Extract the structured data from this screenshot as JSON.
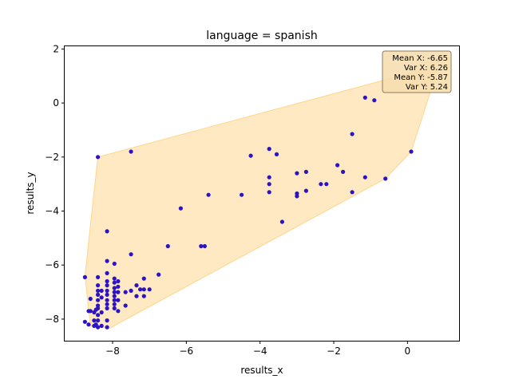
{
  "chart_data": {
    "type": "scatter",
    "title": "language = spanish",
    "xlabel": "results_x",
    "ylabel": "results_y",
    "xlim": [
      -9.3,
      1.4
    ],
    "ylim": [
      -8.8,
      2.1
    ],
    "xticks": [
      -8,
      -6,
      -4,
      -2,
      0
    ],
    "yticks": [
      -8,
      -6,
      -4,
      -2,
      0,
      2
    ],
    "tick_labels_x": [
      "−8",
      "−6",
      "−4",
      "−2",
      "0"
    ],
    "tick_labels_y": [
      "−8",
      "−6",
      "−4",
      "−2",
      "0",
      "2"
    ],
    "grid": false,
    "point_color": "#2b14c4",
    "hull_color": "#ffe5b8",
    "hull_edge_color": "#ffd58a",
    "hull": [
      [
        -8.4,
        -2.0
      ],
      [
        0.6,
        1.3
      ],
      [
        0.9,
        1.4
      ],
      [
        0.5,
        1.5
      ],
      [
        0.9,
        1.6
      ],
      [
        0.1,
        -1.8
      ],
      [
        -0.6,
        -2.8
      ],
      [
        -8.1,
        -8.35
      ],
      [
        -8.6,
        -8.25
      ],
      [
        -8.75,
        -6.4
      ]
    ],
    "points": [
      [
        -8.75,
        -6.45
      ],
      [
        -8.75,
        -8.1
      ],
      [
        -8.65,
        -7.7
      ],
      [
        -8.65,
        -8.2
      ],
      [
        -8.6,
        -7.25
      ],
      [
        -8.6,
        -7.7
      ],
      [
        -8.5,
        -7.75
      ],
      [
        -8.5,
        -8.05
      ],
      [
        -8.5,
        -8.25
      ],
      [
        -8.45,
        -7.65
      ],
      [
        -8.45,
        -8.2
      ],
      [
        -8.4,
        -2.0
      ],
      [
        -8.4,
        -6.45
      ],
      [
        -8.4,
        -6.75
      ],
      [
        -8.4,
        -6.95
      ],
      [
        -8.4,
        -7.1
      ],
      [
        -8.4,
        -7.3
      ],
      [
        -8.4,
        -7.5
      ],
      [
        -8.4,
        -7.6
      ],
      [
        -8.4,
        -7.85
      ],
      [
        -8.4,
        -8.05
      ],
      [
        -8.4,
        -8.3
      ],
      [
        -8.3,
        -6.95
      ],
      [
        -8.3,
        -7.2
      ],
      [
        -8.3,
        -7.75
      ],
      [
        -8.3,
        -8.25
      ],
      [
        -8.15,
        -4.75
      ],
      [
        -8.15,
        -5.85
      ],
      [
        -8.15,
        -6.3
      ],
      [
        -8.15,
        -6.6
      ],
      [
        -8.15,
        -6.75
      ],
      [
        -8.15,
        -6.95
      ],
      [
        -8.15,
        -7.1
      ],
      [
        -8.15,
        -7.3
      ],
      [
        -8.15,
        -7.45
      ],
      [
        -8.15,
        -7.6
      ],
      [
        -8.15,
        -8.05
      ],
      [
        -8.15,
        -8.3
      ],
      [
        -7.95,
        -5.95
      ],
      [
        -7.95,
        -6.5
      ],
      [
        -7.95,
        -6.65
      ],
      [
        -7.95,
        -6.85
      ],
      [
        -7.95,
        -7.0
      ],
      [
        -7.95,
        -7.15
      ],
      [
        -7.95,
        -7.3
      ],
      [
        -7.95,
        -7.45
      ],
      [
        -7.95,
        -7.6
      ],
      [
        -7.85,
        -6.6
      ],
      [
        -7.85,
        -6.8
      ],
      [
        -7.85,
        -7.0
      ],
      [
        -7.85,
        -7.3
      ],
      [
        -7.85,
        -7.7
      ],
      [
        -7.65,
        -7.0
      ],
      [
        -7.65,
        -7.5
      ],
      [
        -7.5,
        -1.8
      ],
      [
        -7.5,
        -5.6
      ],
      [
        -7.5,
        -6.95
      ],
      [
        -7.35,
        -6.75
      ],
      [
        -7.35,
        -7.15
      ],
      [
        -7.25,
        -6.9
      ],
      [
        -7.15,
        -6.5
      ],
      [
        -7.15,
        -6.9
      ],
      [
        -7.15,
        -7.15
      ],
      [
        -7.0,
        -6.9
      ],
      [
        -6.75,
        -6.35
      ],
      [
        -6.5,
        -5.3
      ],
      [
        -6.15,
        -3.9
      ],
      [
        -5.6,
        -5.3
      ],
      [
        -5.5,
        -5.3
      ],
      [
        -5.4,
        -3.4
      ],
      [
        -4.5,
        -3.4
      ],
      [
        -4.25,
        -1.95
      ],
      [
        -3.75,
        -1.7
      ],
      [
        -3.75,
        -2.75
      ],
      [
        -3.75,
        -3.0
      ],
      [
        -3.75,
        -3.3
      ],
      [
        -3.55,
        -1.9
      ],
      [
        -3.4,
        -4.4
      ],
      [
        -3.0,
        -2.6
      ],
      [
        -3.0,
        -3.35
      ],
      [
        -3.0,
        -3.45
      ],
      [
        -2.75,
        -2.55
      ],
      [
        -2.75,
        -3.25
      ],
      [
        -2.35,
        -3.0
      ],
      [
        -2.2,
        -3.0
      ],
      [
        -1.9,
        -2.3
      ],
      [
        -1.75,
        -2.55
      ],
      [
        -1.5,
        -1.15
      ],
      [
        -1.5,
        -3.3
      ],
      [
        -1.15,
        0.2
      ],
      [
        -1.15,
        -2.75
      ],
      [
        -0.9,
        0.1
      ],
      [
        -0.6,
        -2.8
      ],
      [
        0.1,
        -1.8
      ],
      [
        0.85,
        1.6
      ]
    ],
    "stats_box": {
      "lines": [
        "Mean X: -6.65",
        "Var X: 6.26",
        "Mean Y: -5.87",
        "Var Y: 5.24"
      ],
      "facecolor": "#f6deb0",
      "edgecolor": "#8c7a5c"
    }
  }
}
